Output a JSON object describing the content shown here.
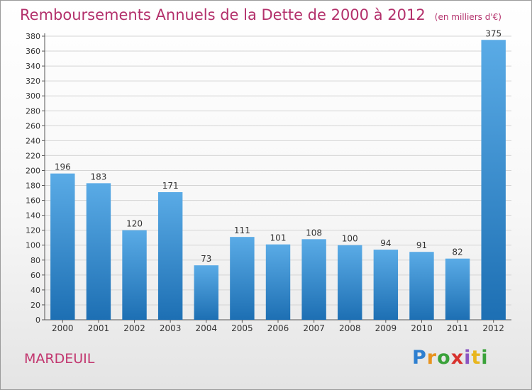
{
  "chart_data": {
    "type": "bar",
    "title": "Remboursements Annuels de la Dette de 2000 à 2012",
    "subtitle": "(en milliers d'€)",
    "categories": [
      "2000",
      "2001",
      "2002",
      "2003",
      "2004",
      "2005",
      "2006",
      "2007",
      "2008",
      "2009",
      "2010",
      "2011",
      "2012"
    ],
    "values": [
      196,
      183,
      120,
      171,
      73,
      111,
      101,
      108,
      100,
      94,
      91,
      82,
      375
    ],
    "ylim": [
      0,
      380
    ],
    "yticks": [
      0,
      20,
      40,
      60,
      80,
      100,
      120,
      140,
      160,
      180,
      200,
      220,
      240,
      260,
      280,
      300,
      320,
      340,
      360,
      380
    ],
    "grid": true,
    "xlabel": "",
    "ylabel": ""
  },
  "commune": "MARDEUIL",
  "logo": {
    "letters": [
      "P",
      "r",
      "o",
      "x",
      "i",
      "t",
      "i"
    ]
  },
  "colors": {
    "bar_top": "#5aabe6",
    "bar_bottom": "#1d6fb3",
    "title": "#b3306b",
    "grid": "#d4d4d4"
  }
}
